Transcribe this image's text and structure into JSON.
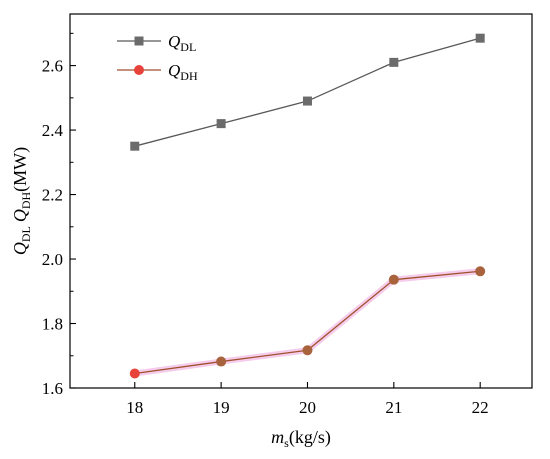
{
  "chart_data": {
    "type": "line",
    "x": [
      18,
      19,
      20,
      21,
      22
    ],
    "xticks": [
      "18",
      "19",
      "20",
      "21",
      "22"
    ],
    "yticks": [
      "1.6",
      "1.8",
      "2.0",
      "2.2",
      "2.4",
      "2.6"
    ],
    "xlim": [
      17.25,
      22.6
    ],
    "ylim": [
      1.6,
      2.76
    ],
    "xlabel": {
      "main": "m",
      "sub": "s",
      "unit": "(kg/s)"
    },
    "ylabel": {
      "q1": "Q",
      "q1sub": "DL",
      "q2": "Q",
      "q2sub": "DH",
      "unit": "(MW)"
    },
    "legend_position": "top-left",
    "grid": false,
    "series": [
      {
        "name": {
          "main": "Q",
          "sub": "DL"
        },
        "values": [
          2.35,
          2.42,
          2.49,
          2.61,
          2.685
        ],
        "color": "#595959",
        "marker": "square"
      },
      {
        "name": {
          "main": "Q",
          "sub": "DH"
        },
        "values": [
          1.645,
          1.682,
          1.717,
          1.936,
          1.962
        ],
        "color": "#e8433b",
        "line_color": "#a0522d",
        "marker": "circle"
      }
    ]
  }
}
